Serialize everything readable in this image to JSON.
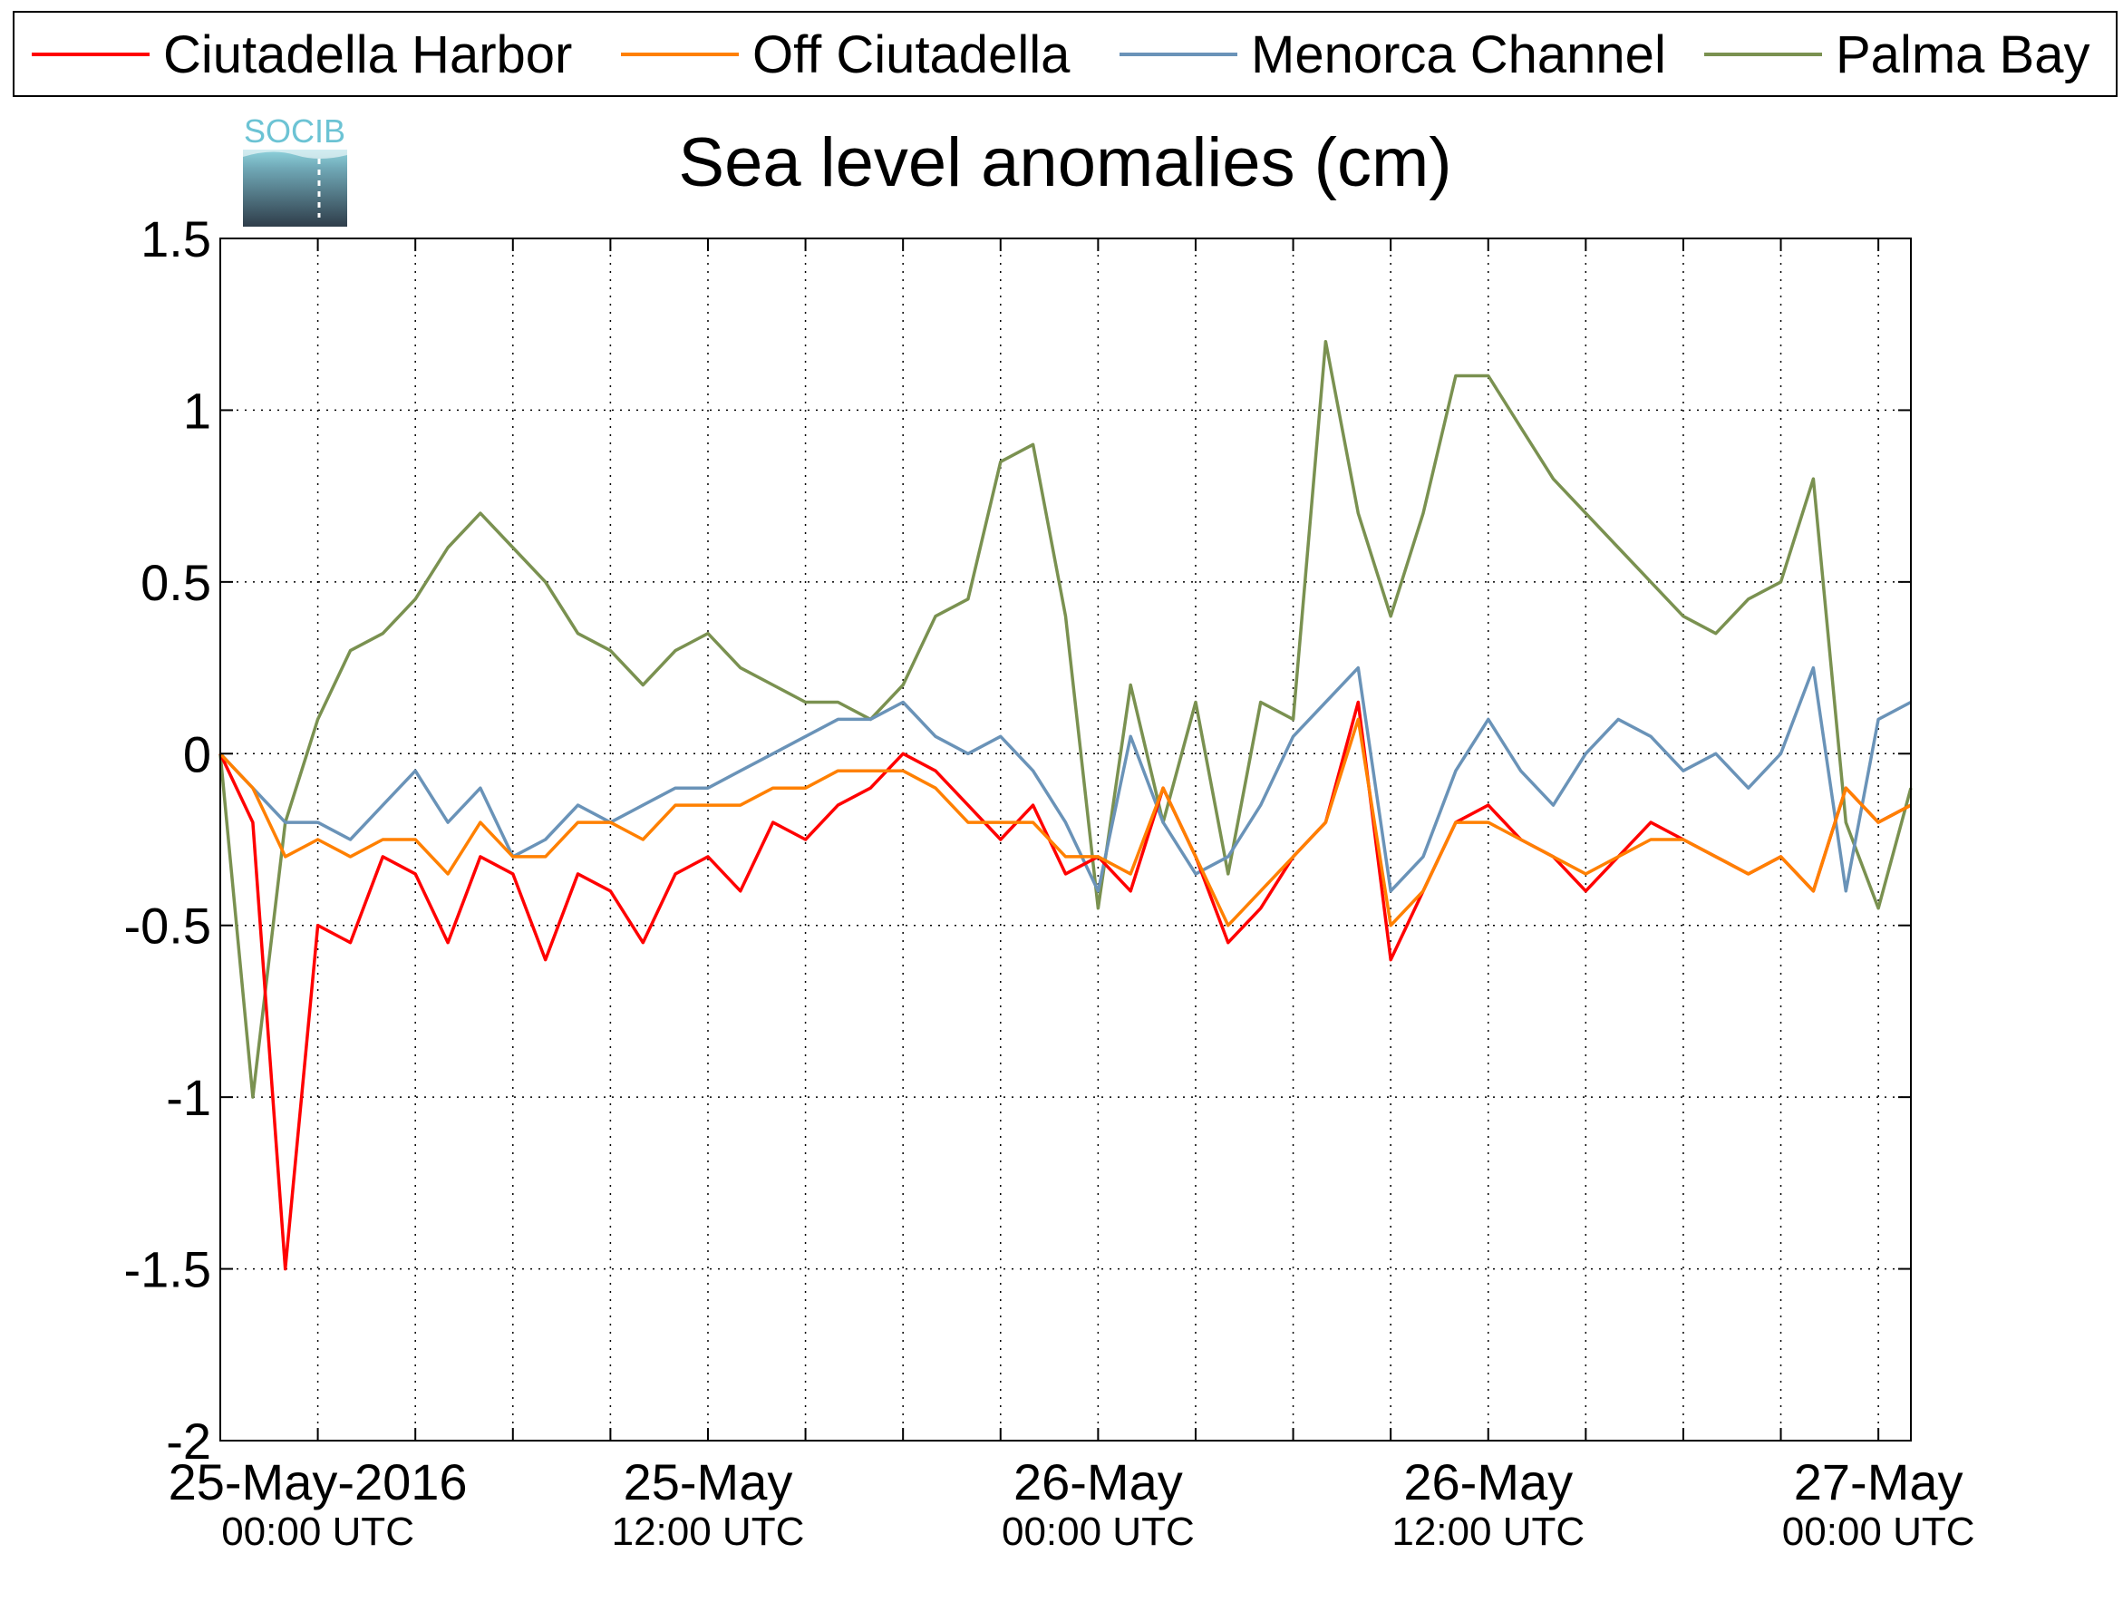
{
  "logo": {
    "text": "SOCIB"
  },
  "chart_data": {
    "type": "line",
    "title": "Sea level anomalies (cm)",
    "xlabel": "",
    "ylabel": "",
    "grid": true,
    "legend_position": "top",
    "xlim": [
      "2016-05-24 21:00",
      "2016-05-27 01:00"
    ],
    "ylim": [
      -2,
      1.5
    ],
    "yticks": [
      -2,
      -1.5,
      -1,
      -0.5,
      0,
      0.5,
      1,
      1.5
    ],
    "ytick_labels": [
      "-2",
      "-1.5",
      "-1",
      "-0.5",
      "0",
      "0.5",
      "1",
      "1.5"
    ],
    "xticks": [
      {
        "x": "2016-05-25 00:00",
        "line1": "25-May-2016",
        "line2": "00:00 UTC"
      },
      {
        "x": "2016-05-25 12:00",
        "line1": "25-May",
        "line2": "12:00 UTC"
      },
      {
        "x": "2016-05-26 00:00",
        "line1": "26-May",
        "line2": "00:00 UTC"
      },
      {
        "x": "2016-05-26 12:00",
        "line1": "26-May",
        "line2": "12:00 UTC"
      },
      {
        "x": "2016-05-27 00:00",
        "line1": "27-May",
        "line2": "00:00 UTC"
      }
    ],
    "series": [
      {
        "name": "Ciutadella Harbor",
        "color": "#ff0000",
        "points": [
          [
            "2016-05-24 21:00",
            0.0
          ],
          [
            "2016-05-24 22:00",
            -0.2
          ],
          [
            "2016-05-24 23:00",
            -1.5
          ],
          [
            "2016-05-25 00:00",
            -0.5
          ],
          [
            "2016-05-25 01:00",
            -0.55
          ],
          [
            "2016-05-25 02:00",
            -0.3
          ],
          [
            "2016-05-25 03:00",
            -0.35
          ],
          [
            "2016-05-25 04:00",
            -0.55
          ],
          [
            "2016-05-25 05:00",
            -0.3
          ],
          [
            "2016-05-25 06:00",
            -0.35
          ],
          [
            "2016-05-25 07:00",
            -0.6
          ],
          [
            "2016-05-25 08:00",
            -0.35
          ],
          [
            "2016-05-25 09:00",
            -0.4
          ],
          [
            "2016-05-25 10:00",
            -0.55
          ],
          [
            "2016-05-25 11:00",
            -0.35
          ],
          [
            "2016-05-25 12:00",
            -0.3
          ],
          [
            "2016-05-25 13:00",
            -0.4
          ],
          [
            "2016-05-25 14:00",
            -0.2
          ],
          [
            "2016-05-25 15:00",
            -0.25
          ],
          [
            "2016-05-25 16:00",
            -0.15
          ],
          [
            "2016-05-25 17:00",
            -0.1
          ],
          [
            "2016-05-25 18:00",
            0.0
          ],
          [
            "2016-05-25 19:00",
            -0.05
          ],
          [
            "2016-05-25 20:00",
            -0.15
          ],
          [
            "2016-05-25 21:00",
            -0.25
          ],
          [
            "2016-05-25 22:00",
            -0.15
          ],
          [
            "2016-05-25 23:00",
            -0.35
          ],
          [
            "2016-05-26 00:00",
            -0.3
          ],
          [
            "2016-05-26 01:00",
            -0.4
          ],
          [
            "2016-05-26 02:00",
            -0.1
          ],
          [
            "2016-05-26 03:00",
            -0.3
          ],
          [
            "2016-05-26 04:00",
            -0.55
          ],
          [
            "2016-05-26 05:00",
            -0.45
          ],
          [
            "2016-05-26 06:00",
            -0.3
          ],
          [
            "2016-05-26 07:00",
            -0.2
          ],
          [
            "2016-05-26 08:00",
            0.15
          ],
          [
            "2016-05-26 09:00",
            -0.6
          ],
          [
            "2016-05-26 10:00",
            -0.4
          ],
          [
            "2016-05-26 11:00",
            -0.2
          ],
          [
            "2016-05-26 12:00",
            -0.15
          ],
          [
            "2016-05-26 13:00",
            -0.25
          ],
          [
            "2016-05-26 14:00",
            -0.3
          ],
          [
            "2016-05-26 15:00",
            -0.4
          ],
          [
            "2016-05-26 16:00",
            -0.3
          ],
          [
            "2016-05-26 17:00",
            -0.2
          ],
          [
            "2016-05-26 18:00",
            -0.25
          ],
          [
            "2016-05-26 19:00",
            -0.3
          ],
          [
            "2016-05-26 20:00",
            -0.35
          ],
          [
            "2016-05-26 21:00",
            -0.3
          ],
          [
            "2016-05-26 22:00",
            -0.4
          ],
          [
            "2016-05-26 23:00",
            -0.1
          ],
          [
            "2016-05-27 00:00",
            -0.2
          ],
          [
            "2016-05-27 01:00",
            -0.15
          ]
        ]
      },
      {
        "name": "Off Ciutadella",
        "color": "#ff8000",
        "points": [
          [
            "2016-05-24 21:00",
            0.0
          ],
          [
            "2016-05-24 22:00",
            -0.1
          ],
          [
            "2016-05-24 23:00",
            -0.3
          ],
          [
            "2016-05-25 00:00",
            -0.25
          ],
          [
            "2016-05-25 01:00",
            -0.3
          ],
          [
            "2016-05-25 02:00",
            -0.25
          ],
          [
            "2016-05-25 03:00",
            -0.25
          ],
          [
            "2016-05-25 04:00",
            -0.35
          ],
          [
            "2016-05-25 05:00",
            -0.2
          ],
          [
            "2016-05-25 06:00",
            -0.3
          ],
          [
            "2016-05-25 07:00",
            -0.3
          ],
          [
            "2016-05-25 08:00",
            -0.2
          ],
          [
            "2016-05-25 09:00",
            -0.2
          ],
          [
            "2016-05-25 10:00",
            -0.25
          ],
          [
            "2016-05-25 11:00",
            -0.15
          ],
          [
            "2016-05-25 12:00",
            -0.15
          ],
          [
            "2016-05-25 13:00",
            -0.15
          ],
          [
            "2016-05-25 14:00",
            -0.1
          ],
          [
            "2016-05-25 15:00",
            -0.1
          ],
          [
            "2016-05-25 16:00",
            -0.05
          ],
          [
            "2016-05-25 17:00",
            -0.05
          ],
          [
            "2016-05-25 18:00",
            -0.05
          ],
          [
            "2016-05-25 19:00",
            -0.1
          ],
          [
            "2016-05-25 20:00",
            -0.2
          ],
          [
            "2016-05-25 21:00",
            -0.2
          ],
          [
            "2016-05-25 22:00",
            -0.2
          ],
          [
            "2016-05-25 23:00",
            -0.3
          ],
          [
            "2016-05-26 00:00",
            -0.3
          ],
          [
            "2016-05-26 01:00",
            -0.35
          ],
          [
            "2016-05-26 02:00",
            -0.1
          ],
          [
            "2016-05-26 03:00",
            -0.3
          ],
          [
            "2016-05-26 04:00",
            -0.5
          ],
          [
            "2016-05-26 05:00",
            -0.4
          ],
          [
            "2016-05-26 06:00",
            -0.3
          ],
          [
            "2016-05-26 07:00",
            -0.2
          ],
          [
            "2016-05-26 08:00",
            0.1
          ],
          [
            "2016-05-26 09:00",
            -0.5
          ],
          [
            "2016-05-26 10:00",
            -0.4
          ],
          [
            "2016-05-26 11:00",
            -0.2
          ],
          [
            "2016-05-26 12:00",
            -0.2
          ],
          [
            "2016-05-26 13:00",
            -0.25
          ],
          [
            "2016-05-26 14:00",
            -0.3
          ],
          [
            "2016-05-26 15:00",
            -0.35
          ],
          [
            "2016-05-26 16:00",
            -0.3
          ],
          [
            "2016-05-26 17:00",
            -0.25
          ],
          [
            "2016-05-26 18:00",
            -0.25
          ],
          [
            "2016-05-26 19:00",
            -0.3
          ],
          [
            "2016-05-26 20:00",
            -0.35
          ],
          [
            "2016-05-26 21:00",
            -0.3
          ],
          [
            "2016-05-26 22:00",
            -0.4
          ],
          [
            "2016-05-26 23:00",
            -0.1
          ],
          [
            "2016-05-27 00:00",
            -0.2
          ],
          [
            "2016-05-27 01:00",
            -0.15
          ]
        ]
      },
      {
        "name": "Menorca Channel",
        "color": "#6a93b8",
        "points": [
          [
            "2016-05-24 21:00",
            0.0
          ],
          [
            "2016-05-24 22:00",
            -0.1
          ],
          [
            "2016-05-24 23:00",
            -0.2
          ],
          [
            "2016-05-25 00:00",
            -0.2
          ],
          [
            "2016-05-25 01:00",
            -0.25
          ],
          [
            "2016-05-25 02:00",
            -0.15
          ],
          [
            "2016-05-25 03:00",
            -0.05
          ],
          [
            "2016-05-25 04:00",
            -0.2
          ],
          [
            "2016-05-25 05:00",
            -0.1
          ],
          [
            "2016-05-25 06:00",
            -0.3
          ],
          [
            "2016-05-25 07:00",
            -0.25
          ],
          [
            "2016-05-25 08:00",
            -0.15
          ],
          [
            "2016-05-25 09:00",
            -0.2
          ],
          [
            "2016-05-25 10:00",
            -0.15
          ],
          [
            "2016-05-25 11:00",
            -0.1
          ],
          [
            "2016-05-25 12:00",
            -0.1
          ],
          [
            "2016-05-25 13:00",
            -0.05
          ],
          [
            "2016-05-25 14:00",
            0.0
          ],
          [
            "2016-05-25 15:00",
            0.05
          ],
          [
            "2016-05-25 16:00",
            0.1
          ],
          [
            "2016-05-25 17:00",
            0.1
          ],
          [
            "2016-05-25 18:00",
            0.15
          ],
          [
            "2016-05-25 19:00",
            0.05
          ],
          [
            "2016-05-25 20:00",
            0.0
          ],
          [
            "2016-05-25 21:00",
            0.05
          ],
          [
            "2016-05-25 22:00",
            -0.05
          ],
          [
            "2016-05-25 23:00",
            -0.2
          ],
          [
            "2016-05-26 00:00",
            -0.4
          ],
          [
            "2016-05-26 01:00",
            0.05
          ],
          [
            "2016-05-26 02:00",
            -0.2
          ],
          [
            "2016-05-26 03:00",
            -0.35
          ],
          [
            "2016-05-26 04:00",
            -0.3
          ],
          [
            "2016-05-26 05:00",
            -0.15
          ],
          [
            "2016-05-26 06:00",
            0.05
          ],
          [
            "2016-05-26 07:00",
            0.15
          ],
          [
            "2016-05-26 08:00",
            0.25
          ],
          [
            "2016-05-26 09:00",
            -0.4
          ],
          [
            "2016-05-26 10:00",
            -0.3
          ],
          [
            "2016-05-26 11:00",
            -0.05
          ],
          [
            "2016-05-26 12:00",
            0.1
          ],
          [
            "2016-05-26 13:00",
            -0.05
          ],
          [
            "2016-05-26 14:00",
            -0.15
          ],
          [
            "2016-05-26 15:00",
            0.0
          ],
          [
            "2016-05-26 16:00",
            0.1
          ],
          [
            "2016-05-26 17:00",
            0.05
          ],
          [
            "2016-05-26 18:00",
            -0.05
          ],
          [
            "2016-05-26 19:00",
            0.0
          ],
          [
            "2016-05-26 20:00",
            -0.1
          ],
          [
            "2016-05-26 21:00",
            0.0
          ],
          [
            "2016-05-26 22:00",
            0.25
          ],
          [
            "2016-05-26 23:00",
            -0.4
          ],
          [
            "2016-05-27 00:00",
            0.1
          ],
          [
            "2016-05-27 01:00",
            0.15
          ]
        ]
      },
      {
        "name": "Palma Bay",
        "color": "#7a9150",
        "points": [
          [
            "2016-05-24 21:00",
            0.0
          ],
          [
            "2016-05-24 22:00",
            -1.0
          ],
          [
            "2016-05-24 23:00",
            -0.2
          ],
          [
            "2016-05-25 00:00",
            0.1
          ],
          [
            "2016-05-25 01:00",
            0.3
          ],
          [
            "2016-05-25 02:00",
            0.35
          ],
          [
            "2016-05-25 03:00",
            0.45
          ],
          [
            "2016-05-25 04:00",
            0.6
          ],
          [
            "2016-05-25 05:00",
            0.7
          ],
          [
            "2016-05-25 06:00",
            0.6
          ],
          [
            "2016-05-25 07:00",
            0.5
          ],
          [
            "2016-05-25 08:00",
            0.35
          ],
          [
            "2016-05-25 09:00",
            0.3
          ],
          [
            "2016-05-25 10:00",
            0.2
          ],
          [
            "2016-05-25 11:00",
            0.3
          ],
          [
            "2016-05-25 12:00",
            0.35
          ],
          [
            "2016-05-25 13:00",
            0.25
          ],
          [
            "2016-05-25 14:00",
            0.2
          ],
          [
            "2016-05-25 15:00",
            0.15
          ],
          [
            "2016-05-25 16:00",
            0.15
          ],
          [
            "2016-05-25 17:00",
            0.1
          ],
          [
            "2016-05-25 18:00",
            0.2
          ],
          [
            "2016-05-25 19:00",
            0.4
          ],
          [
            "2016-05-25 20:00",
            0.45
          ],
          [
            "2016-05-25 21:00",
            0.85
          ],
          [
            "2016-05-25 22:00",
            0.9
          ],
          [
            "2016-05-25 23:00",
            0.4
          ],
          [
            "2016-05-26 00:00",
            -0.45
          ],
          [
            "2016-05-26 01:00",
            0.2
          ],
          [
            "2016-05-26 02:00",
            -0.2
          ],
          [
            "2016-05-26 03:00",
            0.15
          ],
          [
            "2016-05-26 04:00",
            -0.35
          ],
          [
            "2016-05-26 05:00",
            0.15
          ],
          [
            "2016-05-26 06:00",
            0.1
          ],
          [
            "2016-05-26 07:00",
            1.2
          ],
          [
            "2016-05-26 08:00",
            0.7
          ],
          [
            "2016-05-26 09:00",
            0.4
          ],
          [
            "2016-05-26 10:00",
            0.7
          ],
          [
            "2016-05-26 11:00",
            1.1
          ],
          [
            "2016-05-26 12:00",
            1.1
          ],
          [
            "2016-05-26 13:00",
            0.95
          ],
          [
            "2016-05-26 14:00",
            0.8
          ],
          [
            "2016-05-26 15:00",
            0.7
          ],
          [
            "2016-05-26 16:00",
            0.6
          ],
          [
            "2016-05-26 17:00",
            0.5
          ],
          [
            "2016-05-26 18:00",
            0.4
          ],
          [
            "2016-05-26 19:00",
            0.35
          ],
          [
            "2016-05-26 20:00",
            0.45
          ],
          [
            "2016-05-26 21:00",
            0.5
          ],
          [
            "2016-05-26 22:00",
            0.8
          ],
          [
            "2016-05-26 23:00",
            -0.2
          ],
          [
            "2016-05-27 00:00",
            -0.45
          ],
          [
            "2016-05-27 01:00",
            -0.1
          ]
        ]
      }
    ]
  }
}
